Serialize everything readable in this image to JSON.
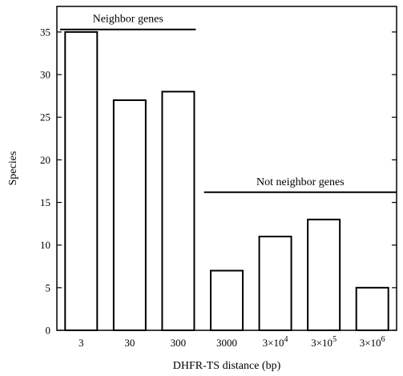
{
  "chart_data": {
    "type": "bar",
    "xlabel": "DHFR-TS distance (bp)",
    "ylabel": "Species",
    "ylim": [
      0,
      38
    ],
    "yticks": [
      0,
      5,
      10,
      15,
      20,
      25,
      30,
      35
    ],
    "grid": false,
    "categories": [
      {
        "base": "3",
        "sup": ""
      },
      {
        "base": "30",
        "sup": ""
      },
      {
        "base": "300",
        "sup": ""
      },
      {
        "base": "3000",
        "sup": ""
      },
      {
        "base": "3×10",
        "sup": "4"
      },
      {
        "base": "3×10",
        "sup": "5"
      },
      {
        "base": "3×10",
        "sup": "6"
      }
    ],
    "values": [
      35,
      27,
      28,
      7,
      11,
      13,
      5
    ],
    "annotations": [
      {
        "text": "Neighbor genes",
        "span": [
          0,
          2
        ],
        "line_y": 35.3
      },
      {
        "text": "Not neighbor genes",
        "span": [
          3,
          6
        ],
        "line_y": 16.2
      }
    ]
  }
}
